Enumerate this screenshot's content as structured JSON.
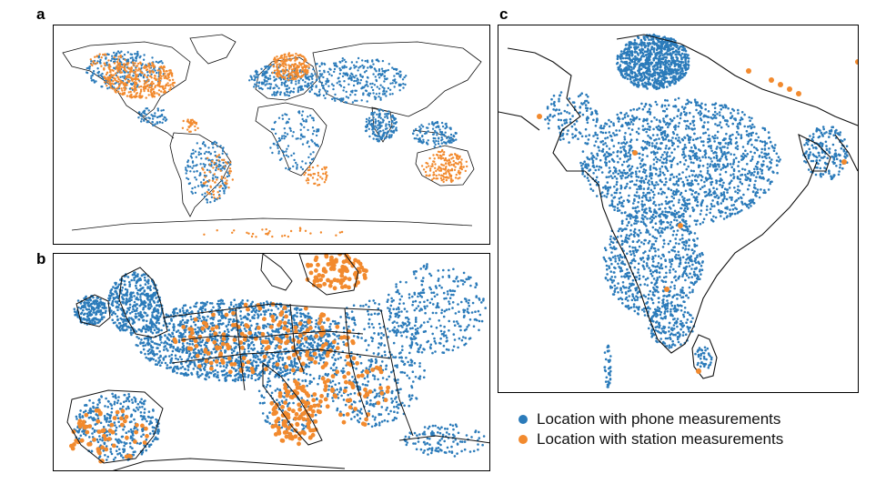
{
  "panels": {
    "a": {
      "letter": "a"
    },
    "b": {
      "letter": "b"
    },
    "c": {
      "letter": "c"
    }
  },
  "legend": {
    "phone": {
      "label": "Location with phone measurements",
      "color": "#2b7bba"
    },
    "station": {
      "label": "Location with station measurements",
      "color": "#f28a2e"
    }
  },
  "colors": {
    "phone": "#2b7bba",
    "station": "#f28a2e",
    "border": "#111111",
    "frame": "#000000"
  }
}
